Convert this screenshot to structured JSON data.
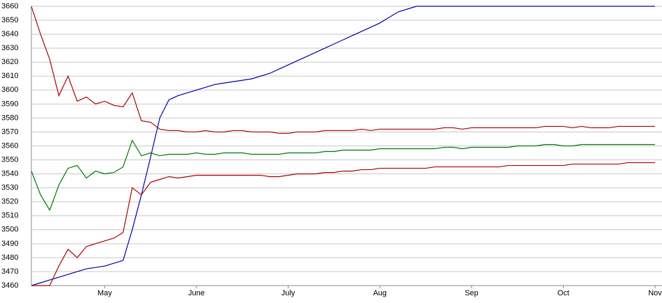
{
  "chart_data": {
    "type": "line",
    "categories": [
      null,
      null,
      null,
      null,
      null,
      null,
      null,
      null,
      "May",
      null,
      null,
      null,
      null,
      null,
      null,
      null,
      null,
      null,
      "June",
      null,
      null,
      null,
      null,
      null,
      null,
      null,
      null,
      null,
      "July",
      null,
      null,
      null,
      null,
      null,
      null,
      null,
      null,
      null,
      "Aug",
      null,
      null,
      null,
      null,
      null,
      null,
      null,
      null,
      null,
      "Sep",
      null,
      null,
      null,
      null,
      null,
      null,
      null,
      null,
      null,
      "Oct",
      null,
      null,
      null,
      null,
      null,
      null,
      null,
      null,
      null,
      "Nov"
    ],
    "series": [
      {
        "color": "#0000aa",
        "values": [
          3460,
          3462,
          3464,
          3466,
          3468,
          3470,
          3472,
          3473,
          3474,
          3476,
          3478,
          3500,
          3525,
          3552,
          3580,
          3593,
          3596,
          3598,
          3600,
          3602,
          3604,
          3605,
          3606,
          3607,
          3608,
          3610,
          3612,
          3615,
          3618,
          3621,
          3624,
          3627,
          3630,
          3633,
          3636,
          3639,
          3642,
          3645,
          3648,
          3652,
          3656,
          3658,
          3660,
          3660,
          3660,
          3660,
          3660,
          3660,
          3660,
          3660,
          3660,
          3660,
          3660,
          3660,
          3660,
          3660,
          3660,
          3660,
          3660,
          3660,
          3660,
          3660,
          3660,
          3660,
          3660,
          3660,
          3660,
          3660,
          3660
        ]
      },
      {
        "color": "#aa0000",
        "values": [
          3660,
          3640,
          3622,
          3596,
          3610,
          3592,
          3595,
          3590,
          3592,
          3589,
          3588,
          3598,
          3578,
          3577,
          3572,
          3571,
          3571,
          3570,
          3570,
          3571,
          3570,
          3570,
          3571,
          3571,
          3570,
          3570,
          3570,
          3569,
          3569,
          3570,
          3570,
          3570,
          3571,
          3571,
          3571,
          3571,
          3572,
          3571,
          3572,
          3572,
          3572,
          3572,
          3572,
          3572,
          3572,
          3573,
          3573,
          3572,
          3573,
          3573,
          3573,
          3573,
          3573,
          3573,
          3573,
          3573,
          3574,
          3574,
          3574,
          3573,
          3574,
          3573,
          3573,
          3573,
          3574,
          3574,
          3574,
          3574,
          3574
        ]
      },
      {
        "color": "#007700",
        "values": [
          3542,
          3525,
          3514,
          3532,
          3544,
          3546,
          3537,
          3542,
          3540,
          3541,
          3545,
          3564,
          3553,
          3555,
          3553,
          3554,
          3554,
          3554,
          3555,
          3554,
          3554,
          3555,
          3555,
          3555,
          3554,
          3554,
          3554,
          3554,
          3555,
          3555,
          3555,
          3555,
          3556,
          3556,
          3557,
          3557,
          3557,
          3557,
          3558,
          3558,
          3558,
          3558,
          3558,
          3558,
          3558,
          3559,
          3559,
          3558,
          3559,
          3559,
          3559,
          3559,
          3559,
          3560,
          3560,
          3560,
          3561,
          3561,
          3560,
          3560,
          3561,
          3561,
          3561,
          3561,
          3561,
          3561,
          3561,
          3561,
          3561
        ]
      },
      {
        "color": "#aa0000",
        "values": [
          3460,
          3460,
          3460,
          3474,
          3486,
          3480,
          3488,
          3490,
          3492,
          3494,
          3498,
          3530,
          3525,
          3534,
          3536,
          3538,
          3537,
          3538,
          3539,
          3539,
          3539,
          3539,
          3539,
          3539,
          3539,
          3539,
          3538,
          3538,
          3539,
          3540,
          3540,
          3540,
          3541,
          3541,
          3542,
          3542,
          3543,
          3543,
          3544,
          3544,
          3544,
          3544,
          3544,
          3544,
          3545,
          3545,
          3545,
          3545,
          3545,
          3545,
          3545,
          3545,
          3546,
          3546,
          3546,
          3546,
          3546,
          3546,
          3546,
          3547,
          3547,
          3547,
          3547,
          3547,
          3547,
          3548,
          3548,
          3548,
          3548
        ]
      }
    ],
    "ylim": [
      3460,
      3660
    ],
    "yticks": [
      3460,
      3470,
      3480,
      3490,
      3500,
      3510,
      3520,
      3530,
      3540,
      3550,
      3560,
      3570,
      3580,
      3590,
      3600,
      3610,
      3620,
      3630,
      3640,
      3650,
      3660
    ],
    "grid": true
  }
}
